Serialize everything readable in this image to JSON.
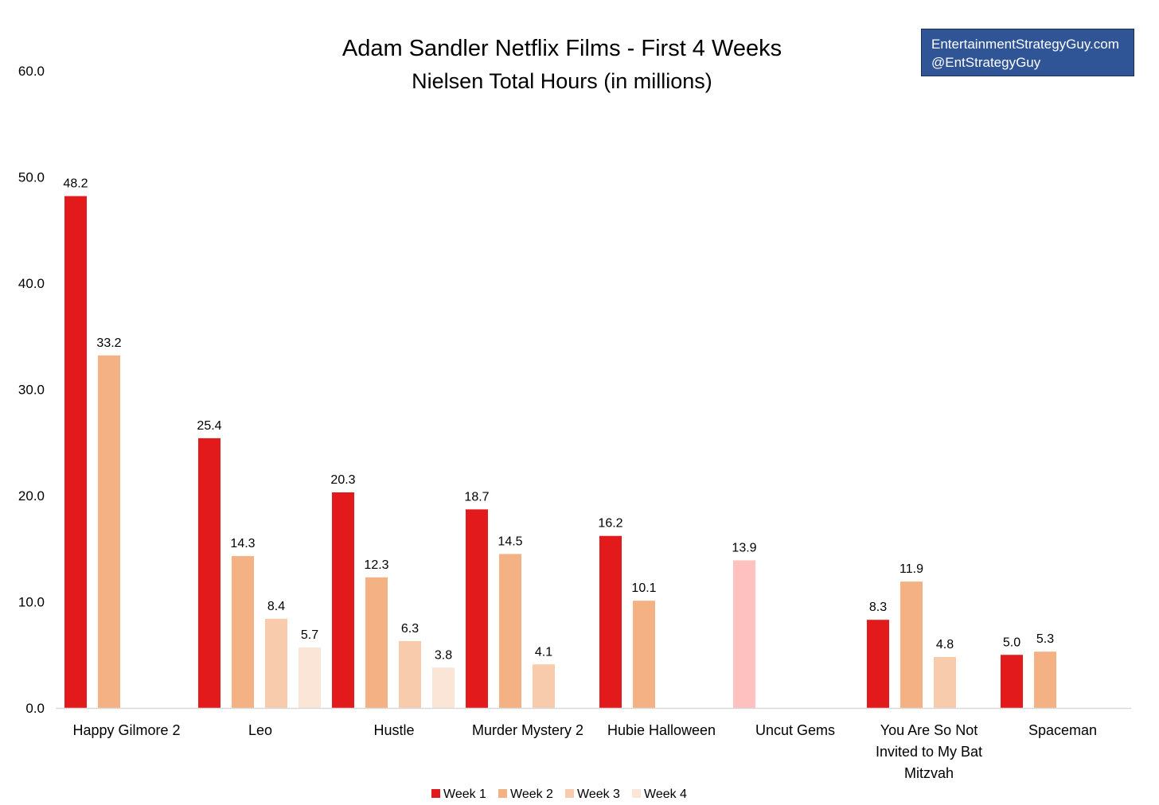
{
  "watermark": {
    "line1": "EntertainmentStrategyGuy.com",
    "line2": "@EntStrategyGuy"
  },
  "colors": {
    "week1": "#e31a1c",
    "week2": "#f4b183",
    "week3": "#f8cbad",
    "week4": "#fbe5d6",
    "highlight": "#ffc0c0",
    "axis": "#d9d9d9"
  },
  "chart_data": {
    "type": "bar",
    "title": "Adam Sandler Netflix Films - First 4 Weeks",
    "subtitle": "Nielsen Total Hours (in millions)",
    "xlabel": "",
    "ylabel": "",
    "ylim": [
      0,
      60
    ],
    "yticks": [
      "0.0",
      "10.0",
      "20.0",
      "30.0",
      "40.0",
      "50.0",
      "60.0"
    ],
    "grid": false,
    "legend_position": "bottom",
    "categories": [
      [
        "Happy Gilmore 2"
      ],
      [
        "Leo"
      ],
      [
        "Hustle"
      ],
      [
        "Murder Mystery 2"
      ],
      [
        "Hubie Halloween"
      ],
      [
        "Uncut Gems"
      ],
      [
        "You Are So Not",
        "Invited to My Bat",
        "Mitzvah"
      ],
      [
        "Spaceman"
      ]
    ],
    "series": [
      {
        "name": "Week 1",
        "values": [
          48.2,
          25.4,
          20.3,
          18.7,
          16.2,
          null,
          8.3,
          5.0
        ],
        "labels": [
          "48.2",
          "25.4",
          "20.3",
          "18.7",
          "16.2",
          null,
          "8.3",
          "5.0"
        ]
      },
      {
        "name": "Week 2",
        "values": [
          33.2,
          14.3,
          12.3,
          14.5,
          10.1,
          null,
          11.9,
          5.3
        ],
        "labels": [
          "33.2",
          "14.3",
          "12.3",
          "14.5",
          "10.1",
          null,
          "11.9",
          "5.3"
        ]
      },
      {
        "name": "Week 3",
        "values": [
          null,
          8.4,
          6.3,
          4.1,
          null,
          null,
          4.8,
          null
        ],
        "labels": [
          null,
          "8.4",
          "6.3",
          "4.1",
          null,
          null,
          "4.8",
          null
        ]
      },
      {
        "name": "Week 4",
        "values": [
          null,
          5.7,
          3.8,
          null,
          null,
          null,
          null,
          null
        ],
        "labels": [
          null,
          "5.7",
          "3.8",
          null,
          null,
          null,
          null,
          null
        ]
      }
    ],
    "annotations": [
      {
        "category": "Uncut Gems",
        "value": 13.9,
        "label": "13.9",
        "note": "total hours, drawn as a single pink bar"
      }
    ]
  }
}
